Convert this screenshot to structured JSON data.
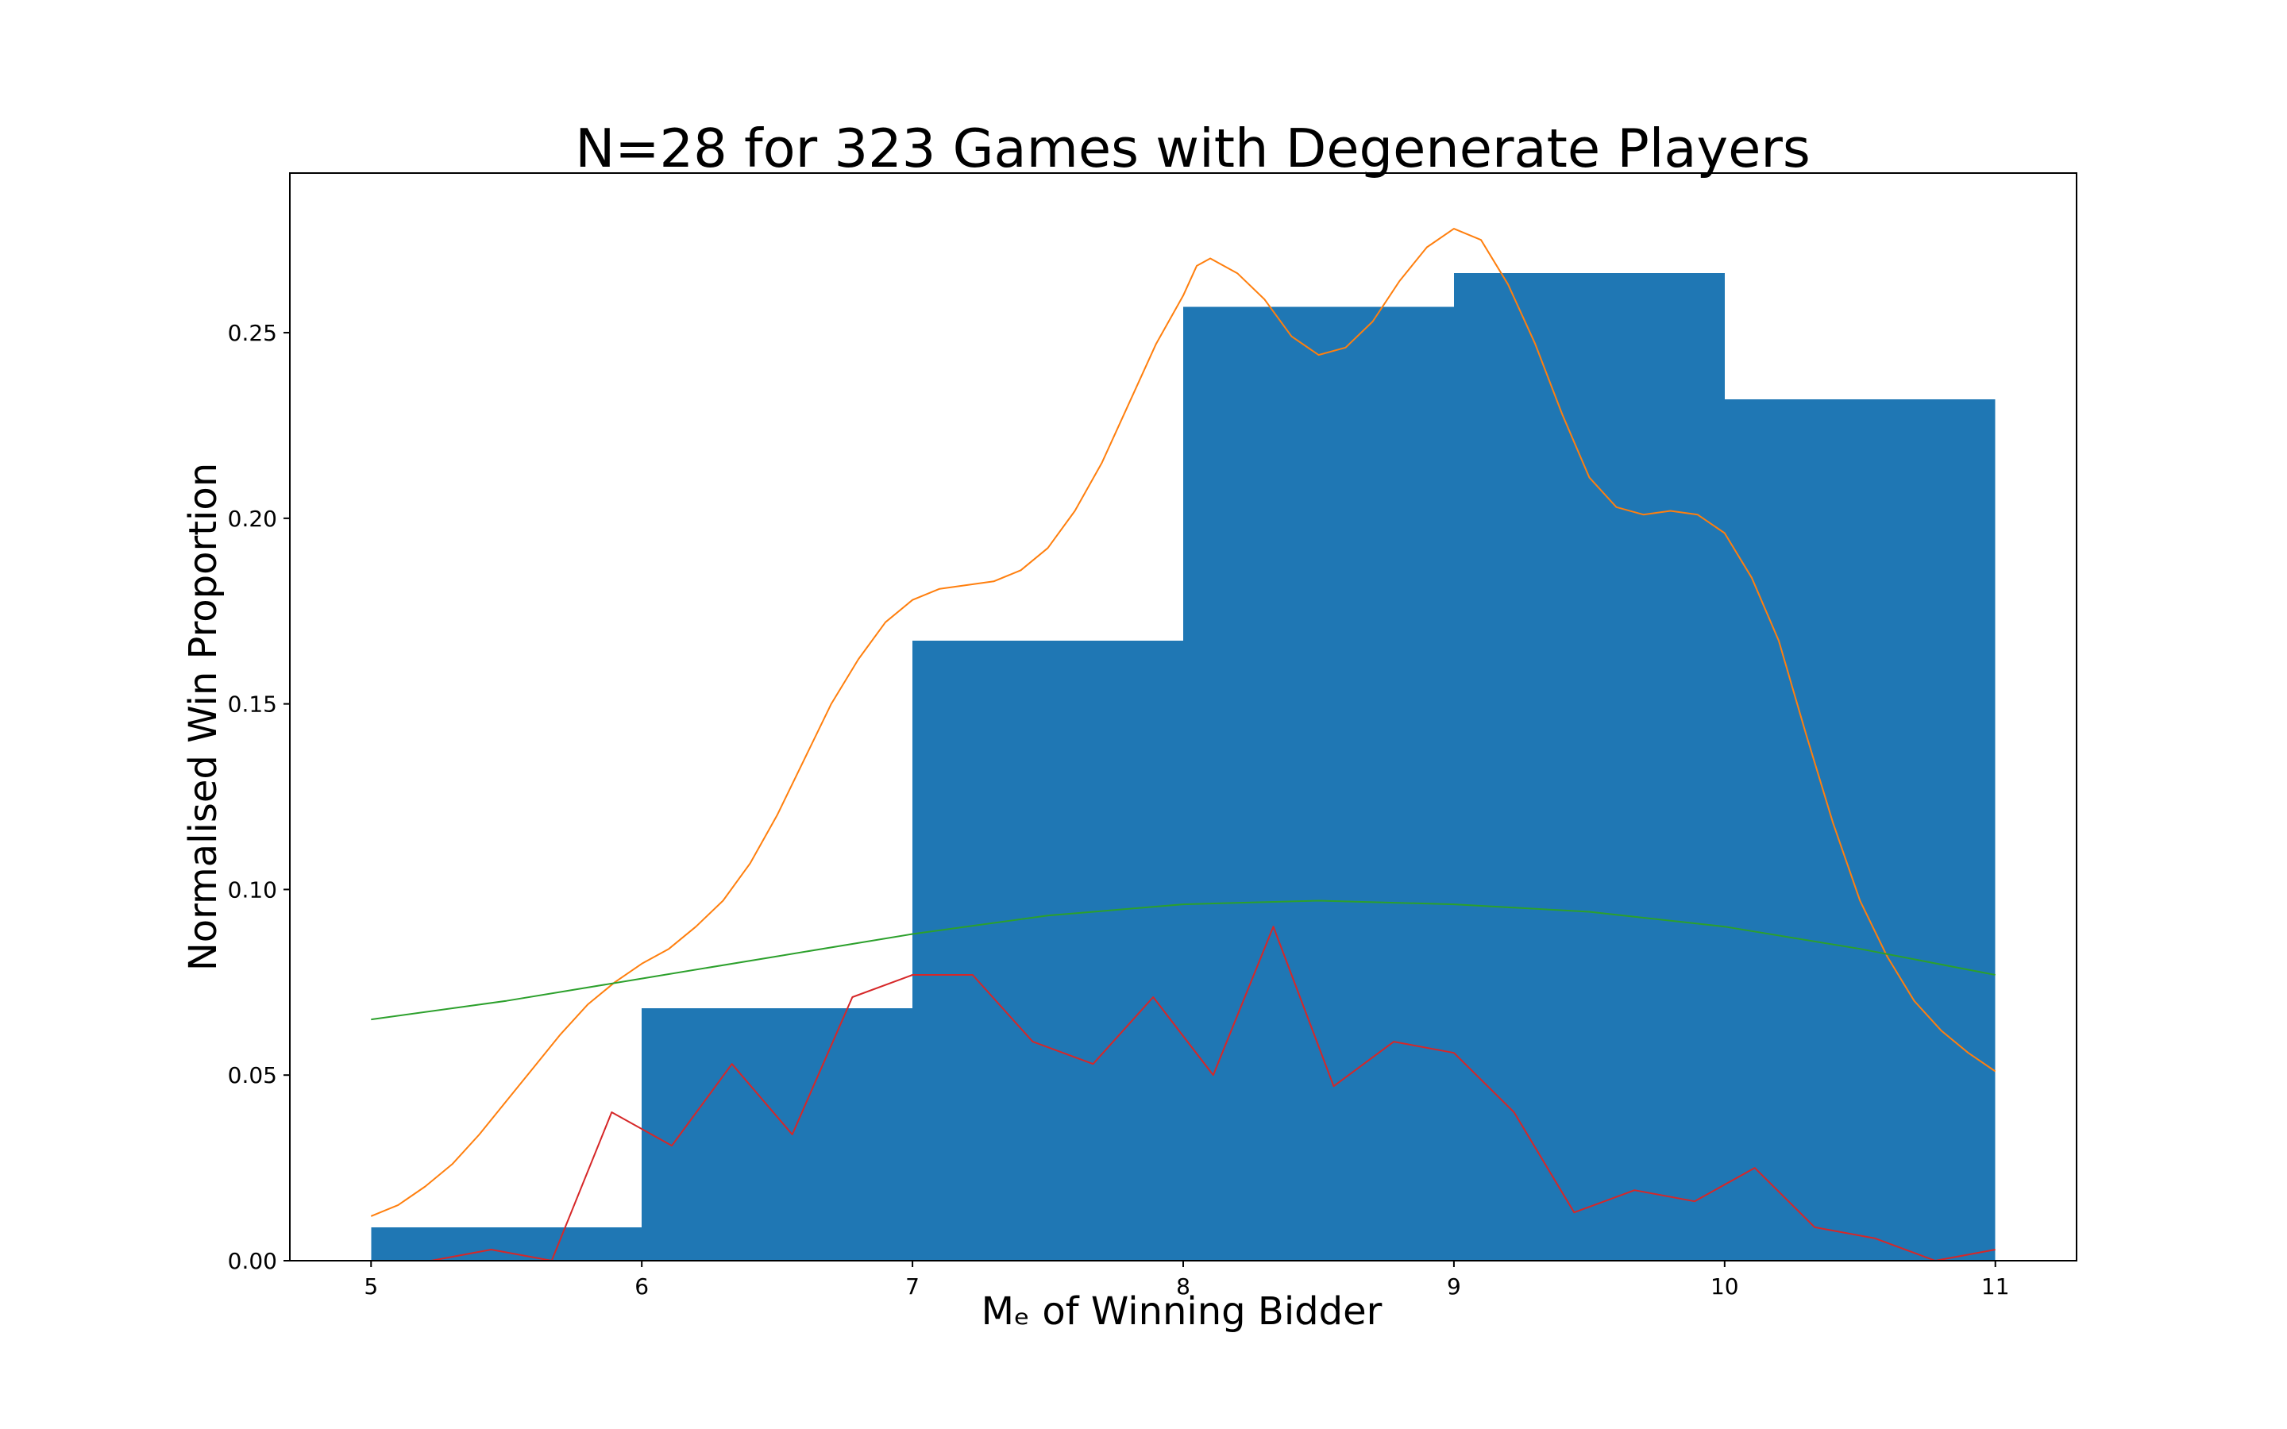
{
  "chart_data": {
    "type": "bar",
    "title": "N=28 for 323 Games with Degenerate Players",
    "xlabel": "Mₑ of Winning Bidder",
    "ylabel": "Normalised Win Proportion",
    "xlim": [
      4.7,
      11.3
    ],
    "ylim": [
      0.0,
      0.293
    ],
    "grid": false,
    "legend": "none",
    "x_ticks": [
      "5",
      "6",
      "7",
      "8",
      "9",
      "10",
      "11"
    ],
    "y_ticks": [
      "0.00",
      "0.05",
      "0.10",
      "0.15",
      "0.20",
      "0.25"
    ],
    "bars": {
      "color": "#1f77b4",
      "bins": [
        {
          "x0": 5,
          "x1": 6,
          "value": 0.009
        },
        {
          "x0": 6,
          "x1": 7,
          "value": 0.068
        },
        {
          "x0": 7,
          "x1": 8,
          "value": 0.167
        },
        {
          "x0": 8,
          "x1": 9,
          "value": 0.257
        },
        {
          "x0": 9,
          "x1": 10,
          "value": 0.266
        },
        {
          "x0": 10,
          "x1": 11,
          "value": 0.232
        }
      ]
    },
    "series": [
      {
        "color": "#ff7f0e",
        "x": [
          5.0,
          5.1,
          5.2,
          5.3,
          5.4,
          5.5,
          5.6,
          5.7,
          5.8,
          5.9,
          6.0,
          6.1,
          6.2,
          6.3,
          6.4,
          6.5,
          6.6,
          6.7,
          6.8,
          6.9,
          7.0,
          7.1,
          7.2,
          7.3,
          7.4,
          7.5,
          7.6,
          7.7,
          7.8,
          7.9,
          8.0,
          8.05,
          8.1,
          8.2,
          8.3,
          8.4,
          8.5,
          8.6,
          8.7,
          8.8,
          8.9,
          9.0,
          9.1,
          9.2,
          9.3,
          9.4,
          9.5,
          9.6,
          9.7,
          9.8,
          9.9,
          10.0,
          10.1,
          10.2,
          10.3,
          10.4,
          10.5,
          10.6,
          10.7,
          10.8,
          10.9,
          11.0
        ],
        "values": [
          0.012,
          0.015,
          0.02,
          0.026,
          0.034,
          0.043,
          0.052,
          0.061,
          0.069,
          0.075,
          0.08,
          0.084,
          0.09,
          0.097,
          0.107,
          0.12,
          0.135,
          0.15,
          0.162,
          0.172,
          0.178,
          0.181,
          0.182,
          0.183,
          0.186,
          0.192,
          0.202,
          0.215,
          0.231,
          0.247,
          0.26,
          0.268,
          0.27,
          0.266,
          0.259,
          0.249,
          0.244,
          0.246,
          0.253,
          0.264,
          0.273,
          0.278,
          0.275,
          0.263,
          0.247,
          0.228,
          0.211,
          0.203,
          0.201,
          0.202,
          0.201,
          0.196,
          0.184,
          0.167,
          0.142,
          0.118,
          0.097,
          0.082,
          0.07,
          0.062,
          0.056,
          0.051
        ]
      },
      {
        "color": "#2ca02c",
        "x": [
          5.0,
          5.5,
          6.0,
          6.5,
          7.0,
          7.5,
          8.0,
          8.5,
          9.0,
          9.5,
          10.0,
          10.5,
          11.0
        ],
        "values": [
          0.065,
          0.07,
          0.076,
          0.082,
          0.088,
          0.093,
          0.096,
          0.097,
          0.096,
          0.094,
          0.09,
          0.084,
          0.077
        ]
      },
      {
        "color": "#d62728",
        "x": [
          5.0,
          5.222,
          5.444,
          5.667,
          5.889,
          6.111,
          6.333,
          6.556,
          6.778,
          7.0,
          7.222,
          7.444,
          7.667,
          7.889,
          8.111,
          8.333,
          8.556,
          8.778,
          9.0,
          9.222,
          9.444,
          9.667,
          9.889,
          10.111,
          10.333,
          10.556,
          10.778,
          11.0
        ],
        "values": [
          0.0,
          0.0,
          0.003,
          0.0,
          0.04,
          0.031,
          0.053,
          0.034,
          0.071,
          0.077,
          0.077,
          0.059,
          0.053,
          0.071,
          0.05,
          0.09,
          0.047,
          0.059,
          0.056,
          0.04,
          0.013,
          0.019,
          0.016,
          0.025,
          0.009,
          0.006,
          0.0,
          0.003
        ]
      }
    ]
  }
}
